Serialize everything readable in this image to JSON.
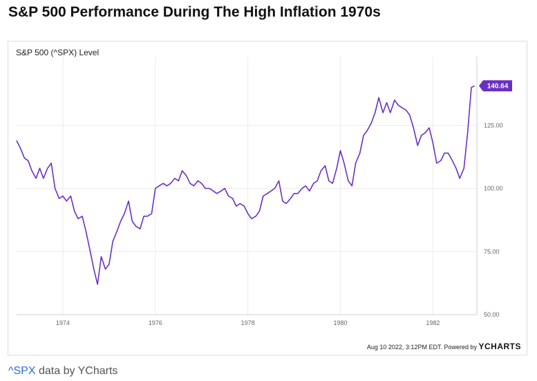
{
  "page": {
    "title": "S&P 500 Performance During The High Inflation 1970s",
    "footer_text": "Aug 10 2022, 3:12PM EDT. Powered by ",
    "footer_brand_y": "Y",
    "footer_brand_rest": "CHARTS",
    "attribution_link": "^SPX",
    "attribution_text": " data by YCharts"
  },
  "colors": {
    "line": "#6a2fc4",
    "badge": "#6a2fc4",
    "grid": "#ececec",
    "axis_text": "#666666"
  },
  "chart_data": {
    "type": "line",
    "title": "",
    "series_title": "S&P 500 (^SPX) Level",
    "xlabel": "",
    "ylabel": "",
    "xlim": [
      1973.0,
      1982.95
    ],
    "ylim": [
      50,
      150
    ],
    "x_ticks": [
      1974,
      1976,
      1978,
      1980,
      1982
    ],
    "x_tick_labels": [
      "1974",
      "1976",
      "1978",
      "1980",
      "1982"
    ],
    "y_ticks": [
      50,
      75,
      100,
      125
    ],
    "y_tick_labels": [
      "50.00",
      "75.00",
      "100.00",
      "125.00"
    ],
    "grid": true,
    "last_value_label": "140.64",
    "last_value": 140.64,
    "series": [
      {
        "x": [
          1973.0,
          1973.08,
          1973.17,
          1973.25,
          1973.33,
          1973.42,
          1973.5,
          1973.58,
          1973.67,
          1973.75,
          1973.83,
          1973.92,
          1974.0,
          1974.08,
          1974.17,
          1974.25,
          1974.33,
          1974.42,
          1974.5,
          1974.58,
          1974.67,
          1974.75,
          1974.83,
          1974.92,
          1975.0,
          1975.08,
          1975.17,
          1975.25,
          1975.33,
          1975.42,
          1975.5,
          1975.58,
          1975.67,
          1975.75,
          1975.83,
          1975.92,
          1976.0,
          1976.08,
          1976.17,
          1976.25,
          1976.33,
          1976.42,
          1976.5,
          1976.58,
          1976.67,
          1976.75,
          1976.83,
          1976.92,
          1977.0,
          1977.08,
          1977.17,
          1977.25,
          1977.33,
          1977.42,
          1977.5,
          1977.58,
          1977.67,
          1977.75,
          1977.83,
          1977.92,
          1978.0,
          1978.08,
          1978.17,
          1978.25,
          1978.33,
          1978.42,
          1978.5,
          1978.58,
          1978.67,
          1978.75,
          1978.83,
          1978.92,
          1979.0,
          1979.08,
          1979.17,
          1979.25,
          1979.33,
          1979.42,
          1979.5,
          1979.58,
          1979.67,
          1979.75,
          1979.83,
          1979.92,
          1980.0,
          1980.08,
          1980.17,
          1980.25,
          1980.33,
          1980.42,
          1980.5,
          1980.58,
          1980.67,
          1980.75,
          1980.83,
          1980.92,
          1981.0,
          1981.08,
          1981.17,
          1981.25,
          1981.33,
          1981.42,
          1981.5,
          1981.58,
          1981.67,
          1981.75,
          1981.83,
          1981.92,
          1982.0,
          1982.08,
          1982.17,
          1982.25,
          1982.33,
          1982.42,
          1982.5,
          1982.58,
          1982.67,
          1982.75,
          1982.83,
          1982.9
        ],
        "values": [
          119,
          116,
          112,
          111,
          107,
          104,
          108,
          104,
          108,
          110,
          100,
          96,
          97,
          95,
          97,
          91,
          88,
          89,
          83,
          76,
          68,
          62,
          73,
          68,
          70,
          79,
          83,
          87,
          90,
          95,
          87,
          85,
          84,
          89,
          89,
          90,
          100,
          101,
          102,
          101,
          102,
          104,
          103,
          107,
          105,
          102,
          101,
          103,
          102,
          100,
          100,
          99,
          98,
          99,
          100,
          97,
          96,
          93,
          94,
          93,
          90,
          88,
          89,
          91,
          97,
          98,
          99,
          100,
          103,
          95,
          94,
          96,
          98,
          98,
          100,
          101,
          99,
          102,
          103,
          107,
          109,
          103,
          102,
          108,
          115,
          110,
          103,
          101,
          110,
          114,
          121,
          123,
          126,
          130,
          136,
          130,
          134,
          130,
          135,
          133,
          132,
          131,
          129,
          124,
          117,
          121,
          122,
          124,
          118,
          110,
          111,
          114,
          114,
          111,
          108,
          104,
          108,
          122,
          140,
          140.64
        ]
      }
    ]
  }
}
